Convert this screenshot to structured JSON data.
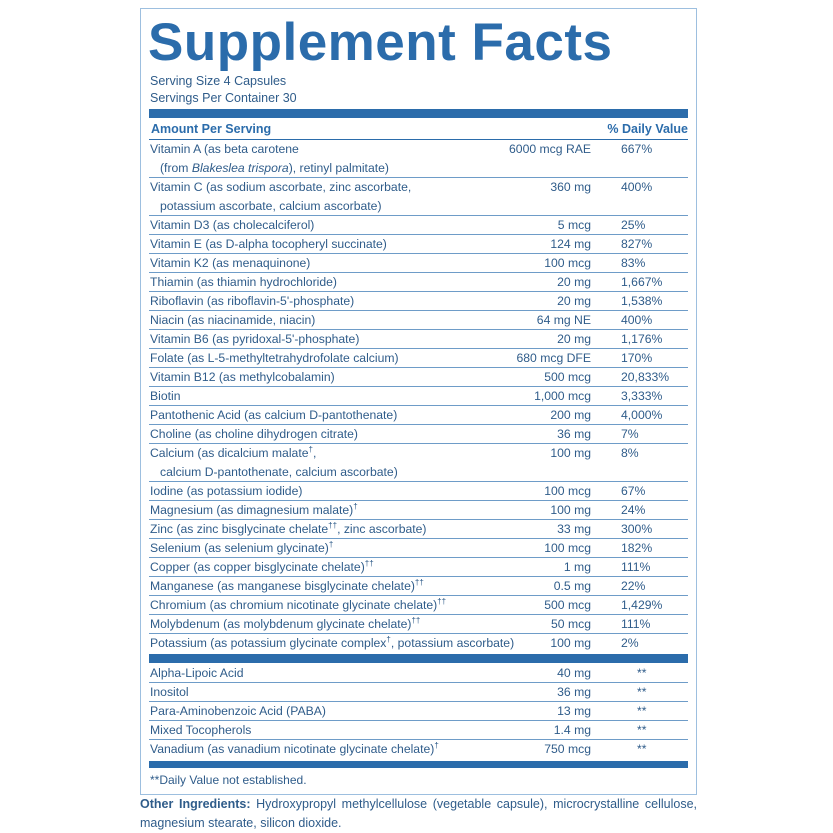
{
  "header": {
    "title": "Supplement Facts",
    "serving_size": "Serving Size 4 Capsules",
    "servings_per_container": "Servings Per Container 30"
  },
  "table": {
    "columns": [
      "Amount Per Serving",
      "% Daily Value"
    ],
    "sections": [
      {
        "rows": [
          {
            "name": [
              "Vitamin A (as beta carotene",
              [
                "(from ",
                "Blakeslea trispora",
                "), retinyl palmitate)"
              ]
            ],
            "amount": "6000 mcg RAE",
            "daily_value": "667%"
          },
          {
            "name": [
              "Vitamin C (as sodium ascorbate, zinc ascorbate,",
              "potassium ascorbate, calcium ascorbate)"
            ],
            "amount": "360 mg",
            "daily_value": "400%"
          },
          {
            "name": [
              "Vitamin D3 (as cholecalciferol)"
            ],
            "amount": "5 mcg",
            "daily_value": "25%"
          },
          {
            "name": [
              "Vitamin E (as D-alpha tocopheryl succinate)"
            ],
            "amount": "124 mg",
            "daily_value": "827%"
          },
          {
            "name": [
              "Vitamin K2 (as menaquinone)"
            ],
            "amount": "100 mcg",
            "daily_value": "83%"
          },
          {
            "name": [
              "Thiamin (as thiamin hydrochloride)"
            ],
            "amount": "20 mg",
            "daily_value": "1,667%"
          },
          {
            "name": [
              "Riboflavin (as riboflavin-5'-phosphate)"
            ],
            "amount": "20 mg",
            "daily_value": "1,538%"
          },
          {
            "name": [
              "Niacin (as niacinamide, niacin)"
            ],
            "amount": "64 mg NE",
            "daily_value": "400%"
          },
          {
            "name": [
              "Vitamin B6 (as pyridoxal-5'-phosphate)"
            ],
            "amount": "20 mg",
            "daily_value": "1,176%"
          },
          {
            "name": [
              "Folate (as L-5-methyltetrahydrofolate calcium)"
            ],
            "amount": "680 mcg DFE",
            "daily_value": "170%"
          },
          {
            "name": [
              "Vitamin B12 (as methylcobalamin)"
            ],
            "amount": "500 mcg",
            "daily_value": "20,833%"
          },
          {
            "name": [
              "Biotin"
            ],
            "amount": "1,000 mcg",
            "daily_value": "3,333%"
          },
          {
            "name": [
              "Pantothenic Acid (as calcium D-pantothenate)"
            ],
            "amount": "200 mg",
            "daily_value": "4,000%"
          },
          {
            "name": [
              "Choline (as choline dihydrogen citrate)"
            ],
            "amount": "36 mg",
            "daily_value": "7%"
          },
          {
            "name": [
              "Calcium (as dicalcium malate†,",
              "calcium D-pantothenate, calcium ascorbate)"
            ],
            "amount": "100 mg",
            "daily_value": "8%"
          },
          {
            "name": [
              "Iodine (as potassium iodide)"
            ],
            "amount": "100 mcg",
            "daily_value": "67%"
          },
          {
            "name": [
              "Magnesium (as dimagnesium malate)†"
            ],
            "amount": "100 mg",
            "daily_value": "24%"
          },
          {
            "name": [
              "Zinc (as zinc bisglycinate chelate††,  zinc ascorbate)"
            ],
            "amount": "33 mg",
            "daily_value": "300%"
          },
          {
            "name": [
              "Selenium (as selenium glycinate)†"
            ],
            "amount": "100 mcg",
            "daily_value": "182%"
          },
          {
            "name": [
              "Copper (as copper bisglycinate chelate)††"
            ],
            "amount": "1 mg",
            "daily_value": "111%"
          },
          {
            "name": [
              "Manganese (as manganese bisglycinate chelate)††"
            ],
            "amount": "0.5 mg",
            "daily_value": "22%"
          },
          {
            "name": [
              "Chromium (as chromium nicotinate glycinate chelate)††"
            ],
            "amount": "500 mcg",
            "daily_value": "1,429%"
          },
          {
            "name": [
              "Molybdenum (as molybdenum glycinate chelate)††"
            ],
            "amount": "50 mcg",
            "daily_value": "111%"
          },
          {
            "name": [
              "Potassium (as potassium glycinate complex†, potassium ascorbate)"
            ],
            "amount": "100 mg",
            "daily_value": "2%"
          }
        ]
      },
      {
        "rows": [
          {
            "name": [
              "Alpha-Lipoic Acid"
            ],
            "amount": "40 mg",
            "daily_value": "**"
          },
          {
            "name": [
              "Inositol"
            ],
            "amount": "36 mg",
            "daily_value": "**"
          },
          {
            "name": [
              "Para-Aminobenzoic Acid (PABA)"
            ],
            "amount": "13 mg",
            "daily_value": "**"
          },
          {
            "name": [
              "Mixed Tocopherols"
            ],
            "amount": "1.4 mg",
            "daily_value": "**"
          },
          {
            "name": [
              "Vanadium (as vanadium nicotinate glycinate chelate)†"
            ],
            "amount": "750 mcg",
            "daily_value": "**"
          }
        ]
      }
    ]
  },
  "footnote": "**Daily Value not established.",
  "other_ingredients": {
    "label": "Other Ingredients:",
    "text": "Hydroxypropyl methylcellulose (vegetable capsule), microcrystalline cellulose, magnesium stearate, silicon dioxide."
  }
}
